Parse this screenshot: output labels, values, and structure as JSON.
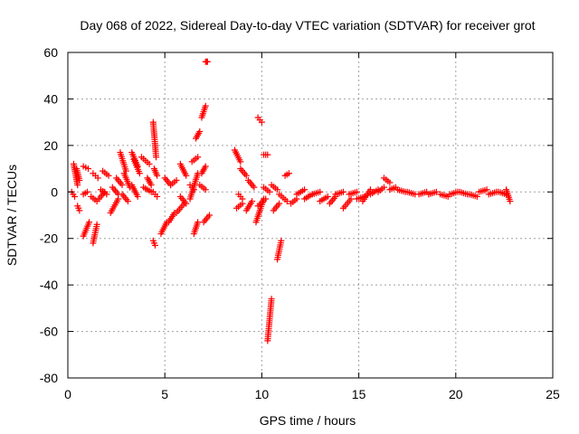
{
  "chart_data": {
    "type": "scatter",
    "title": "Day 068 of 2022, Sidereal Day-to-day VTEC variation (SDTVAR) for receiver grot",
    "xlabel": "GPS time / hours",
    "ylabel": "SDTVAR / TECUs",
    "xlim": [
      0,
      25
    ],
    "ylim": [
      -80,
      60
    ],
    "xticks": [
      0,
      5,
      10,
      15,
      20,
      25
    ],
    "xtick_labels": [
      "0",
      "5",
      "10",
      "15",
      "20",
      "25"
    ],
    "yticks": [
      -80,
      -60,
      -40,
      -20,
      0,
      20,
      40,
      60
    ],
    "ytick_labels": [
      "-80",
      "-60",
      "-40",
      "-20",
      "0",
      "20",
      "40",
      "60"
    ],
    "grid": true,
    "marker": "plus",
    "series_color": "#ff0000",
    "segments": [
      {
        "x": [
          0.2,
          0.35
        ],
        "y": [
          0,
          -2
        ]
      },
      {
        "x": [
          0.3,
          0.5
        ],
        "y": [
          12,
          3
        ]
      },
      {
        "x": [
          0.45,
          0.6
        ],
        "y": [
          10,
          5
        ]
      },
      {
        "x": [
          0.5,
          0.6
        ],
        "y": [
          -6,
          -8
        ]
      },
      {
        "x": [
          0.8,
          1.0
        ],
        "y": [
          -1,
          0
        ]
      },
      {
        "x": [
          0.8,
          1.05
        ],
        "y": [
          11,
          10
        ]
      },
      {
        "x": [
          0.8,
          1.1
        ],
        "y": [
          -19,
          -13
        ]
      },
      {
        "x": [
          1.3,
          1.5
        ],
        "y": [
          -22,
          -14
        ]
      },
      {
        "x": [
          1.3,
          1.55
        ],
        "y": [
          8,
          6
        ]
      },
      {
        "x": [
          1.2,
          1.5
        ],
        "y": [
          -2,
          -4
        ]
      },
      {
        "x": [
          1.6,
          1.9
        ],
        "y": [
          -3,
          0
        ]
      },
      {
        "x": [
          1.8,
          2.1
        ],
        "y": [
          9,
          7
        ]
      },
      {
        "x": [
          1.7,
          2.0
        ],
        "y": [
          1,
          -1
        ]
      },
      {
        "x": [
          2.2,
          2.6
        ],
        "y": [
          -9,
          -3
        ]
      },
      {
        "x": [
          2.3,
          2.6
        ],
        "y": [
          2,
          -1
        ]
      },
      {
        "x": [
          2.5,
          2.8
        ],
        "y": [
          6,
          3
        ]
      },
      {
        "x": [
          2.7,
          3.0
        ],
        "y": [
          17,
          9
        ]
      },
      {
        "x": [
          2.9,
          3.2
        ],
        "y": [
          8,
          2
        ]
      },
      {
        "x": [
          2.8,
          3.1
        ],
        "y": [
          -1,
          -4
        ]
      },
      {
        "x": [
          3.3,
          3.6
        ],
        "y": [
          17,
          11
        ]
      },
      {
        "x": [
          3.3,
          3.6
        ],
        "y": [
          3,
          -2
        ]
      },
      {
        "x": [
          3.4,
          3.7
        ],
        "y": [
          14,
          8
        ]
      },
      {
        "x": [
          3.8,
          4.2
        ],
        "y": [
          15,
          12
        ]
      },
      {
        "x": [
          3.9,
          4.3
        ],
        "y": [
          2,
          0
        ]
      },
      {
        "x": [
          4.1,
          4.3
        ],
        "y": [
          6,
          3
        ]
      },
      {
        "x": [
          4.4,
          4.55
        ],
        "y": [
          30,
          15
        ]
      },
      {
        "x": [
          4.45,
          4.6
        ],
        "y": [
          10,
          7
        ]
      },
      {
        "x": [
          4.4,
          4.6
        ],
        "y": [
          0,
          -2
        ]
      },
      {
        "x": [
          4.4,
          4.5
        ],
        "y": [
          -21,
          -23
        ]
      },
      {
        "x": [
          4.8,
          5.1
        ],
        "y": [
          -18,
          -13
        ]
      },
      {
        "x": [
          5.0,
          5.3
        ],
        "y": [
          6,
          3
        ]
      },
      {
        "x": [
          5.2,
          5.5
        ],
        "y": [
          -13,
          -9
        ]
      },
      {
        "x": [
          5.3,
          5.6
        ],
        "y": [
          3,
          5
        ]
      },
      {
        "x": [
          5.6,
          6.0
        ],
        "y": [
          -9,
          -5
        ]
      },
      {
        "x": [
          5.8,
          6.1
        ],
        "y": [
          12,
          7
        ]
      },
      {
        "x": [
          5.8,
          6.1
        ],
        "y": [
          -2,
          -5
        ]
      },
      {
        "x": [
          6.3,
          6.7
        ],
        "y": [
          -3,
          8
        ]
      },
      {
        "x": [
          6.3,
          6.5
        ],
        "y": [
          3,
          1
        ]
      },
      {
        "x": [
          6.5,
          6.7
        ],
        "y": [
          -18,
          -13
        ]
      },
      {
        "x": [
          6.4,
          6.7
        ],
        "y": [
          13,
          15
        ]
      },
      {
        "x": [
          6.6,
          6.8
        ],
        "y": [
          23,
          26
        ]
      },
      {
        "x": [
          6.9,
          7.1
        ],
        "y": [
          32,
          37
        ]
      },
      {
        "x": [
          6.9,
          7.1
        ],
        "y": [
          8,
          11
        ]
      },
      {
        "x": [
          6.8,
          7.1
        ],
        "y": [
          3,
          1
        ]
      },
      {
        "x": [
          7.0,
          7.3
        ],
        "y": [
          -13,
          -10
        ]
      },
      {
        "x": [
          7.1,
          7.2
        ],
        "y": [
          56,
          56
        ]
      },
      {
        "x": [
          8.6,
          8.9
        ],
        "y": [
          18,
          13
        ]
      },
      {
        "x": [
          8.7,
          9.0
        ],
        "y": [
          -7,
          -5
        ]
      },
      {
        "x": [
          8.8,
          9.0
        ],
        "y": [
          -1,
          -3
        ]
      },
      {
        "x": [
          8.9,
          9.2
        ],
        "y": [
          10,
          7
        ]
      },
      {
        "x": [
          9.2,
          9.5
        ],
        "y": [
          -8,
          -4
        ]
      },
      {
        "x": [
          9.3,
          9.6
        ],
        "y": [
          5,
          2
        ]
      },
      {
        "x": [
          9.8,
          10.0
        ],
        "y": [
          32,
          30
        ]
      },
      {
        "x": [
          9.7,
          10.1
        ],
        "y": [
          -13,
          -3
        ]
      },
      {
        "x": [
          9.8,
          10.2
        ],
        "y": [
          -6,
          -3
        ]
      },
      {
        "x": [
          10.1,
          10.3
        ],
        "y": [
          16,
          16
        ]
      },
      {
        "x": [
          10.1,
          10.4
        ],
        "y": [
          2,
          0
        ]
      },
      {
        "x": [
          10.3,
          10.5
        ],
        "y": [
          -64,
          -46
        ]
      },
      {
        "x": [
          10.5,
          10.8
        ],
        "y": [
          3,
          1
        ]
      },
      {
        "x": [
          10.6,
          10.9
        ],
        "y": [
          -8,
          -5
        ]
      },
      {
        "x": [
          10.8,
          11.0
        ],
        "y": [
          -29,
          -21
        ]
      },
      {
        "x": [
          10.9,
          11.3
        ],
        "y": [
          -1,
          -4
        ]
      },
      {
        "x": [
          11.2,
          11.4
        ],
        "y": [
          7,
          8
        ]
      },
      {
        "x": [
          11.5,
          11.8
        ],
        "y": [
          -5,
          -3
        ]
      },
      {
        "x": [
          11.8,
          12.2
        ],
        "y": [
          -1,
          1
        ]
      },
      {
        "x": [
          12.2,
          12.6
        ],
        "y": [
          -3,
          -1
        ]
      },
      {
        "x": [
          12.6,
          13.0
        ],
        "y": [
          -1,
          0
        ]
      },
      {
        "x": [
          13.0,
          13.4
        ],
        "y": [
          -4,
          -2
        ]
      },
      {
        "x": [
          13.5,
          13.8
        ],
        "y": [
          -5,
          -2
        ]
      },
      {
        "x": [
          13.8,
          14.2
        ],
        "y": [
          -1,
          0
        ]
      },
      {
        "x": [
          14.2,
          14.6
        ],
        "y": [
          -7,
          -3
        ]
      },
      {
        "x": [
          14.5,
          14.9
        ],
        "y": [
          -1,
          0
        ]
      },
      {
        "x": [
          14.9,
          15.3
        ],
        "y": [
          -3,
          -2
        ]
      },
      {
        "x": [
          15.2,
          15.6
        ],
        "y": [
          -4,
          1
        ]
      },
      {
        "x": [
          15.6,
          16.0
        ],
        "y": [
          -1,
          1
        ]
      },
      {
        "x": [
          16.0,
          16.3
        ],
        "y": [
          0,
          2
        ]
      },
      {
        "x": [
          16.3,
          16.6
        ],
        "y": [
          6,
          4
        ]
      },
      {
        "x": [
          16.6,
          16.9
        ],
        "y": [
          1,
          2
        ]
      },
      {
        "x": [
          17.0,
          17.4
        ],
        "y": [
          1,
          0
        ]
      },
      {
        "x": [
          17.5,
          17.9
        ],
        "y": [
          0,
          -1
        ]
      },
      {
        "x": [
          18.1,
          18.5
        ],
        "y": [
          -1,
          0
        ]
      },
      {
        "x": [
          18.6,
          19.0
        ],
        "y": [
          -1,
          0
        ]
      },
      {
        "x": [
          19.2,
          19.6
        ],
        "y": [
          -1,
          -2
        ]
      },
      {
        "x": [
          19.7,
          20.1
        ],
        "y": [
          -1,
          0
        ]
      },
      {
        "x": [
          20.2,
          20.6
        ],
        "y": [
          0,
          -1
        ]
      },
      {
        "x": [
          20.7,
          21.1
        ],
        "y": [
          -1,
          -2
        ]
      },
      {
        "x": [
          21.2,
          21.6
        ],
        "y": [
          0,
          1
        ]
      },
      {
        "x": [
          21.7,
          22.1
        ],
        "y": [
          -1,
          0
        ]
      },
      {
        "x": [
          22.2,
          22.6
        ],
        "y": [
          0,
          -1
        ]
      },
      {
        "x": [
          22.6,
          22.8
        ],
        "y": [
          1,
          -4
        ]
      }
    ]
  }
}
